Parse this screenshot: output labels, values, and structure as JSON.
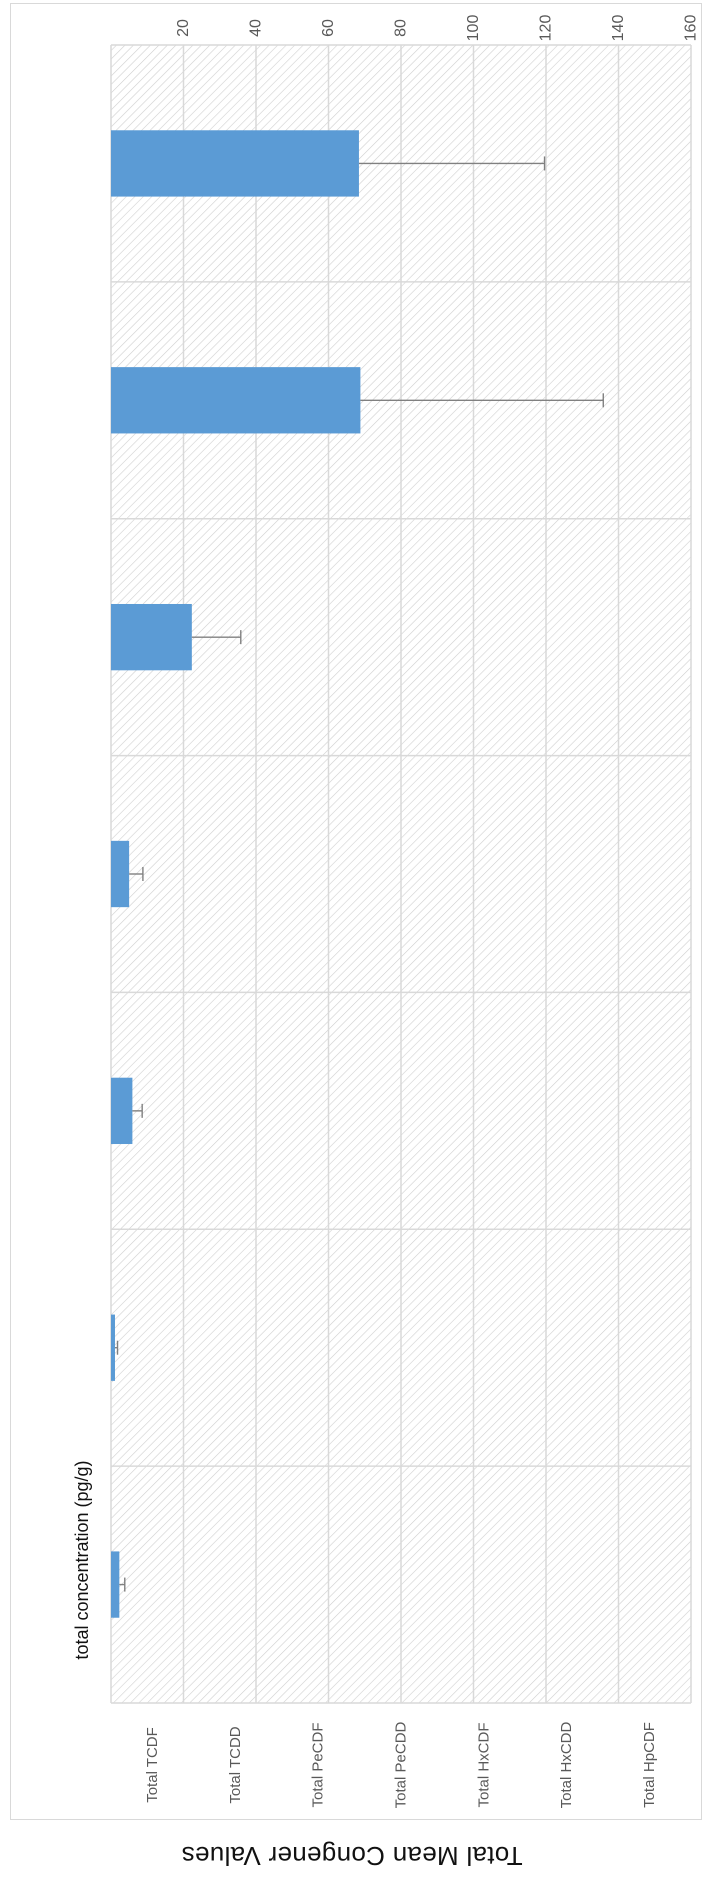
{
  "chart_data": {
    "type": "bar",
    "title": "Total Mean Congener Values",
    "ylabel": "total concentration (pg/g)",
    "categories": [
      "Total TCDF",
      "Total TCDD",
      "Total PeCDF",
      "Total PeCDD",
      "Total HxCDF",
      "Total HxCDD",
      "Total HpCDF"
    ],
    "values": [
      2.3,
      1.1,
      5.9,
      5.0,
      22.3,
      68.8,
      68.4
    ],
    "error_upper": [
      3.8,
      1.8,
      8.6,
      8.8,
      35.8,
      135.8,
      119.6
    ],
    "ylim": [
      0,
      160
    ],
    "yticks": [
      20,
      40,
      60,
      80,
      100,
      120,
      140,
      160
    ],
    "grid": true,
    "bar_color": "#5b9bd5",
    "orientation": "rotated 90 degrees clockwise"
  }
}
